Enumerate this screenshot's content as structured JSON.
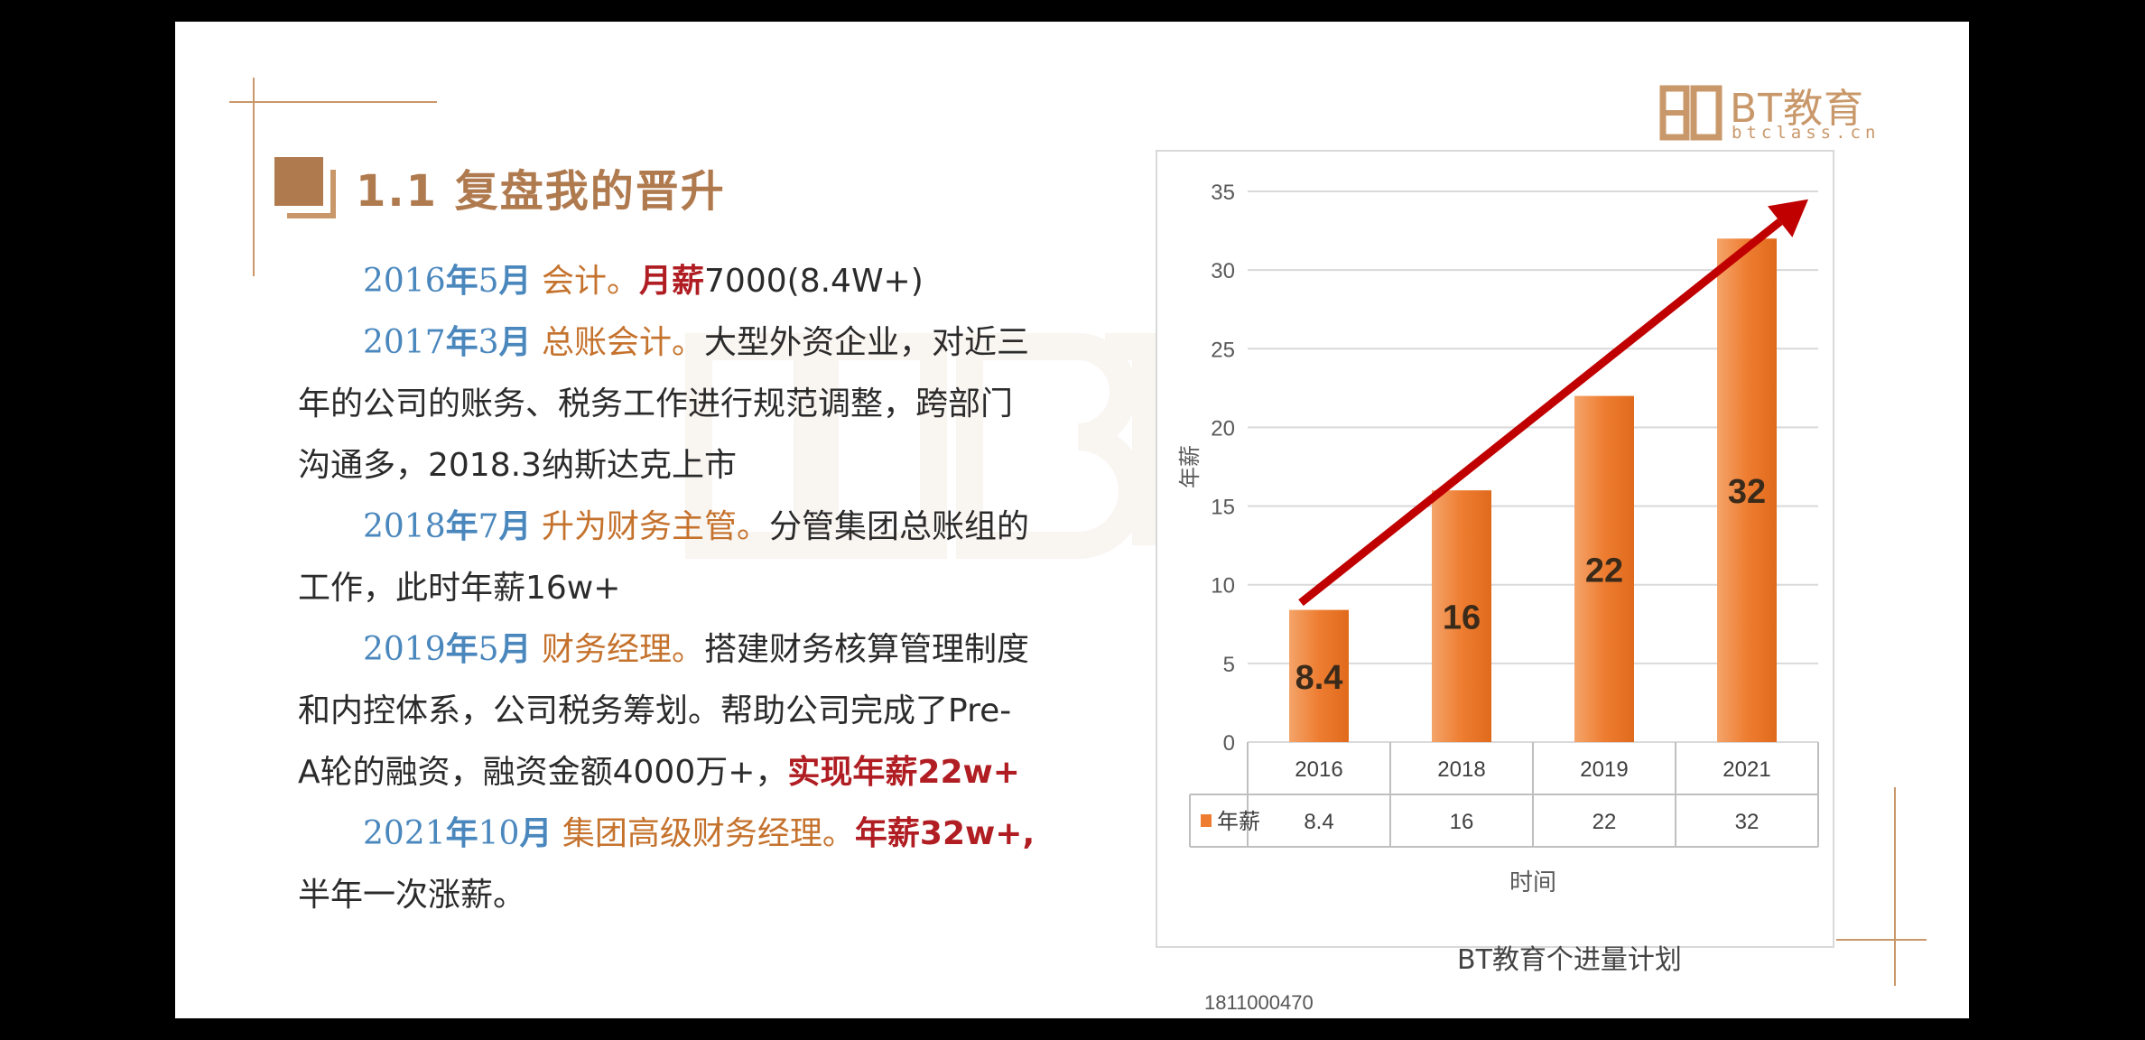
{
  "title": "1.1 复盘我的晋升",
  "logo": {
    "text": "BT教育",
    "sub": "btclass.cn"
  },
  "paragraphs": [
    {
      "date_year": "2016",
      "date_y": "年",
      "date_month": "5",
      "date_m": "月",
      "role": " 会计。",
      "highlight": "月薪",
      "rest": "7000(8.4W+)"
    },
    {
      "date_year": "2017",
      "date_y": "年",
      "date_month": "3",
      "date_m": "月",
      "role": " 总账会计。",
      "rest_line1": "大型外资企业，对近三",
      "rest_line2": "年的公司的账务、税务工作进行规范调整，跨部门",
      "rest_line3": "沟通多，2018.3纳斯达克上市"
    },
    {
      "date_year": "2018",
      "date_y": "年",
      "date_month": "7",
      "date_m": "月",
      "role": " 升为财务主管。",
      "rest_line1": "分管集团总账组的",
      "rest_line2": "工作，此时年薪16w+"
    },
    {
      "date_year": "2019",
      "date_y": "年",
      "date_month": "5",
      "date_m": "月",
      "role": " 财务经理。",
      "rest_line1": "搭建财务核算管理制度",
      "rest_line2": "和内控体系，公司税务筹划。帮助公司完成了Pre-",
      "rest_line3": "A轮的融资，融资金额4000万+，",
      "highlight": "实现年薪22w+"
    },
    {
      "date_year": "2021",
      "date_y": "年",
      "date_month": "10",
      "date_m": "月",
      "role": " 集团高级财务经理。",
      "highlight": "年薪32w+,",
      "rest_line2": "半年一次涨薪。"
    }
  ],
  "chart_data": {
    "type": "bar",
    "categories": [
      "2016",
      "2018",
      "2019",
      "2021"
    ],
    "series": [
      {
        "name": "年薪",
        "values": [
          8.4,
          16,
          22,
          32
        ]
      }
    ],
    "data_labels": [
      "8.4",
      "16",
      "22",
      "32"
    ],
    "yticks": [
      "0",
      "5",
      "10",
      "15",
      "20",
      "25",
      "30",
      "35"
    ],
    "ylim": [
      0,
      35
    ],
    "ylabel": "年薪",
    "xlabel": "时间",
    "grid": true,
    "data_table": true,
    "bar_color": "#ee7d31",
    "arrow_color": "#c00000"
  },
  "footer": {
    "id": "1811000470",
    "partial_text": "BT教育个进量计划"
  },
  "colors": {
    "accent": "#c9986a",
    "title": "#b07a4f",
    "date": "#4a87bd",
    "role": "#c5722d",
    "highlight": "#b01d22"
  }
}
